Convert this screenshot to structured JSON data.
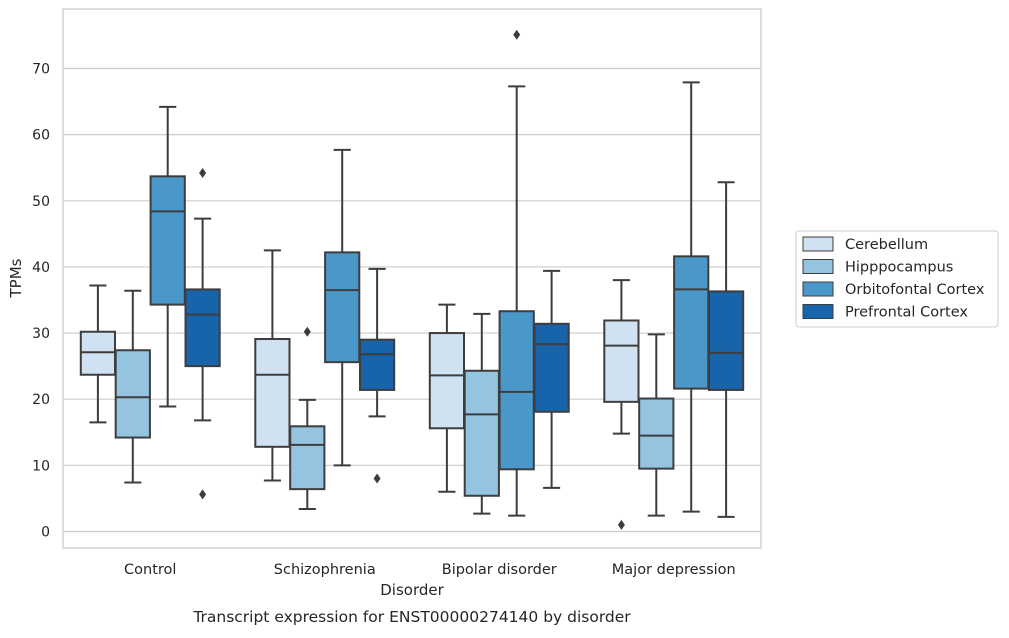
{
  "chart_data": {
    "type": "boxplot",
    "title": "Transcript expression for ENST00000274140 by disorder",
    "xlabel": "Disorder",
    "ylabel": "TPMs",
    "ylim": [
      -2.5,
      79
    ],
    "yticks": [
      0,
      10,
      20,
      30,
      40,
      50,
      60,
      70
    ],
    "grid": "horizontal",
    "legend_position": "right",
    "categories": [
      "Control",
      "Schizophrenia",
      "Bipolar disorder",
      "Major depression"
    ],
    "series": [
      {
        "name": "Cerebellum",
        "color": "#d0e1f2",
        "boxes": [
          {
            "whisker_low": 16.5,
            "q1": 23.7,
            "median": 27.1,
            "q3": 30.2,
            "whisker_high": 37.2,
            "outliers": []
          },
          {
            "whisker_low": 7.7,
            "q1": 12.8,
            "median": 23.7,
            "q3": 29.1,
            "whisker_high": 42.5,
            "outliers": []
          },
          {
            "whisker_low": 6.0,
            "q1": 15.6,
            "median": 23.6,
            "q3": 30.0,
            "whisker_high": 34.3,
            "outliers": []
          },
          {
            "whisker_low": 14.8,
            "q1": 19.6,
            "median": 28.1,
            "q3": 31.9,
            "whisker_high": 38.0,
            "outliers": [
              1.0
            ]
          }
        ]
      },
      {
        "name": "Hipppocampus",
        "color": "#94c4df",
        "boxes": [
          {
            "whisker_low": 7.4,
            "q1": 14.2,
            "median": 20.3,
            "q3": 27.4,
            "whisker_high": 36.4,
            "outliers": []
          },
          {
            "whisker_low": 3.4,
            "q1": 6.4,
            "median": 13.1,
            "q3": 15.9,
            "whisker_high": 19.9,
            "outliers": [
              30.2
            ]
          },
          {
            "whisker_low": 2.7,
            "q1": 5.4,
            "median": 17.7,
            "q3": 24.3,
            "whisker_high": 32.9,
            "outliers": []
          },
          {
            "whisker_low": 2.4,
            "q1": 9.5,
            "median": 14.5,
            "q3": 20.1,
            "whisker_high": 29.8,
            "outliers": []
          }
        ]
      },
      {
        "name": "Orbitofontal Cortex",
        "color": "#4a98c9",
        "boxes": [
          {
            "whisker_low": 18.9,
            "q1": 34.3,
            "median": 48.4,
            "q3": 53.7,
            "whisker_high": 64.2,
            "outliers": []
          },
          {
            "whisker_low": 10.0,
            "q1": 25.6,
            "median": 36.5,
            "q3": 42.2,
            "whisker_high": 57.7,
            "outliers": []
          },
          {
            "whisker_low": 2.4,
            "q1": 9.4,
            "median": 21.1,
            "q3": 33.3,
            "whisker_high": 67.3,
            "outliers": [
              75.1
            ]
          },
          {
            "whisker_low": 3.0,
            "q1": 21.6,
            "median": 36.6,
            "q3": 41.6,
            "whisker_high": 67.9,
            "outliers": []
          }
        ]
      },
      {
        "name": "Prefrontal Cortex",
        "color": "#1764ab",
        "boxes": [
          {
            "whisker_low": 16.8,
            "q1": 25.0,
            "median": 32.8,
            "q3": 36.6,
            "whisker_high": 47.3,
            "outliers": [
              5.6,
              54.2
            ]
          },
          {
            "whisker_low": 17.4,
            "q1": 21.4,
            "median": 26.8,
            "q3": 29.0,
            "whisker_high": 39.7,
            "outliers": [
              8.0
            ]
          },
          {
            "whisker_low": 6.6,
            "q1": 18.1,
            "median": 28.3,
            "q3": 31.4,
            "whisker_high": 39.4,
            "outliers": []
          },
          {
            "whisker_low": 2.2,
            "q1": 21.4,
            "median": 27.0,
            "q3": 36.3,
            "whisker_high": 52.8,
            "outliers": []
          }
        ]
      }
    ]
  }
}
